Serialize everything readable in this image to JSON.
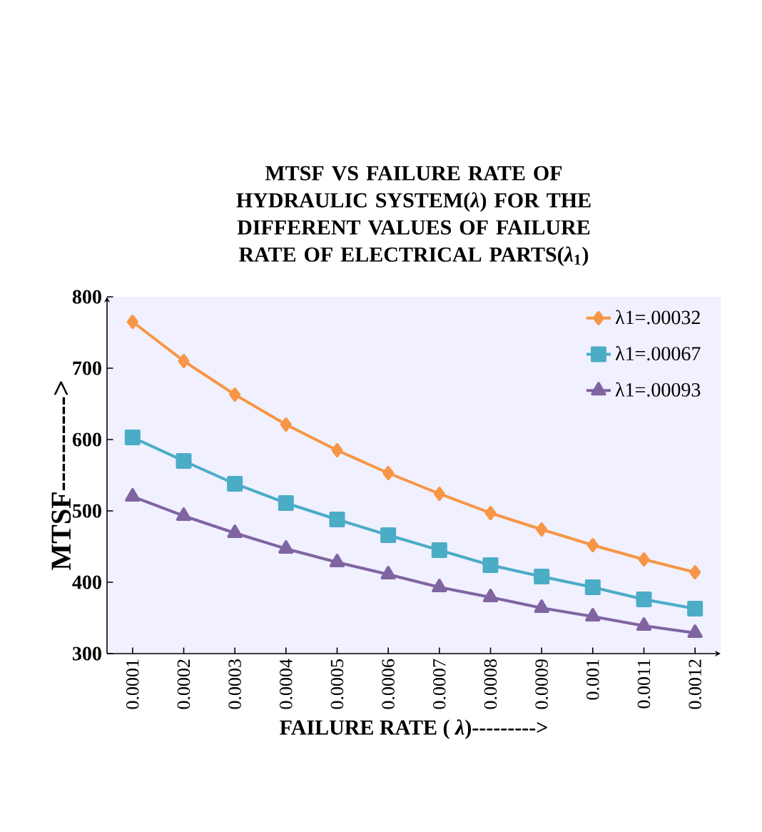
{
  "chart_data": {
    "type": "line",
    "title": "MTSF VS FAILURE RATE OF HYDRAULIC SYSTEM(*λ*) FOR THE DIFFERENT VALUES OF FAILURE RATE OF ELECTRICAL PARTS(*λ*$_{1}$)",
    "xlabel": "FAILURE RATE ( *λ*)--------->",
    "ylabel": "MTSF---------->",
    "categories": [
      "0.0001",
      "0.0002",
      "0.0003",
      "0.0004",
      "0.0005",
      "0.0006",
      "0.0007",
      "0.0008",
      "0.0009",
      "0.001",
      "0.0011",
      "0.0012"
    ],
    "ylim": [
      300,
      800
    ],
    "yticks": [
      300,
      400,
      500,
      600,
      700,
      800
    ],
    "legend": "top right",
    "grid": false,
    "series": [
      {
        "name": "λ1=.00032",
        "color": "#f79646",
        "marker": "diamond",
        "values": [
          765,
          710,
          663,
          621,
          585,
          553,
          524,
          497,
          474,
          452,
          432,
          414
        ]
      },
      {
        "name": "λ1=.00067",
        "color": "#4bacc6",
        "marker": "square",
        "values": [
          603,
          570,
          538,
          511,
          488,
          466,
          445,
          424,
          408,
          393,
          376,
          363
        ]
      },
      {
        "name": "λ1=.00093",
        "color": "#8064a2",
        "marker": "triangle",
        "values": [
          520,
          493,
          469,
          447,
          428,
          411,
          393,
          379,
          364,
          352,
          339,
          329
        ]
      }
    ]
  }
}
